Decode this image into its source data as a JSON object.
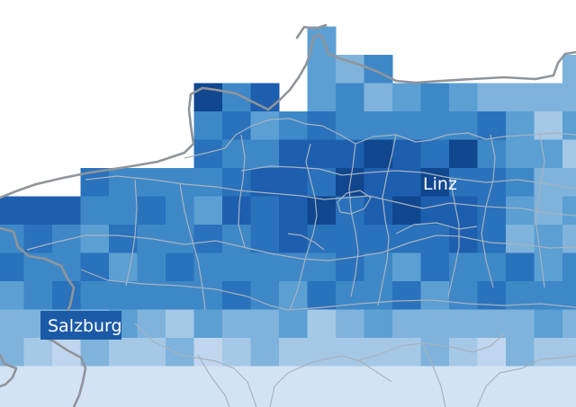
{
  "map": {
    "cities": [
      {
        "name": "Linz"
      },
      {
        "name": "Salzburg"
      }
    ],
    "colors": {
      "background": "#ffffff",
      "border_outer": "#8f949a",
      "border_inner": "#a7b2c0",
      "label_text": "#ffffff",
      "label_highlight": "#1b5aa6"
    },
    "legend": null
  }
}
